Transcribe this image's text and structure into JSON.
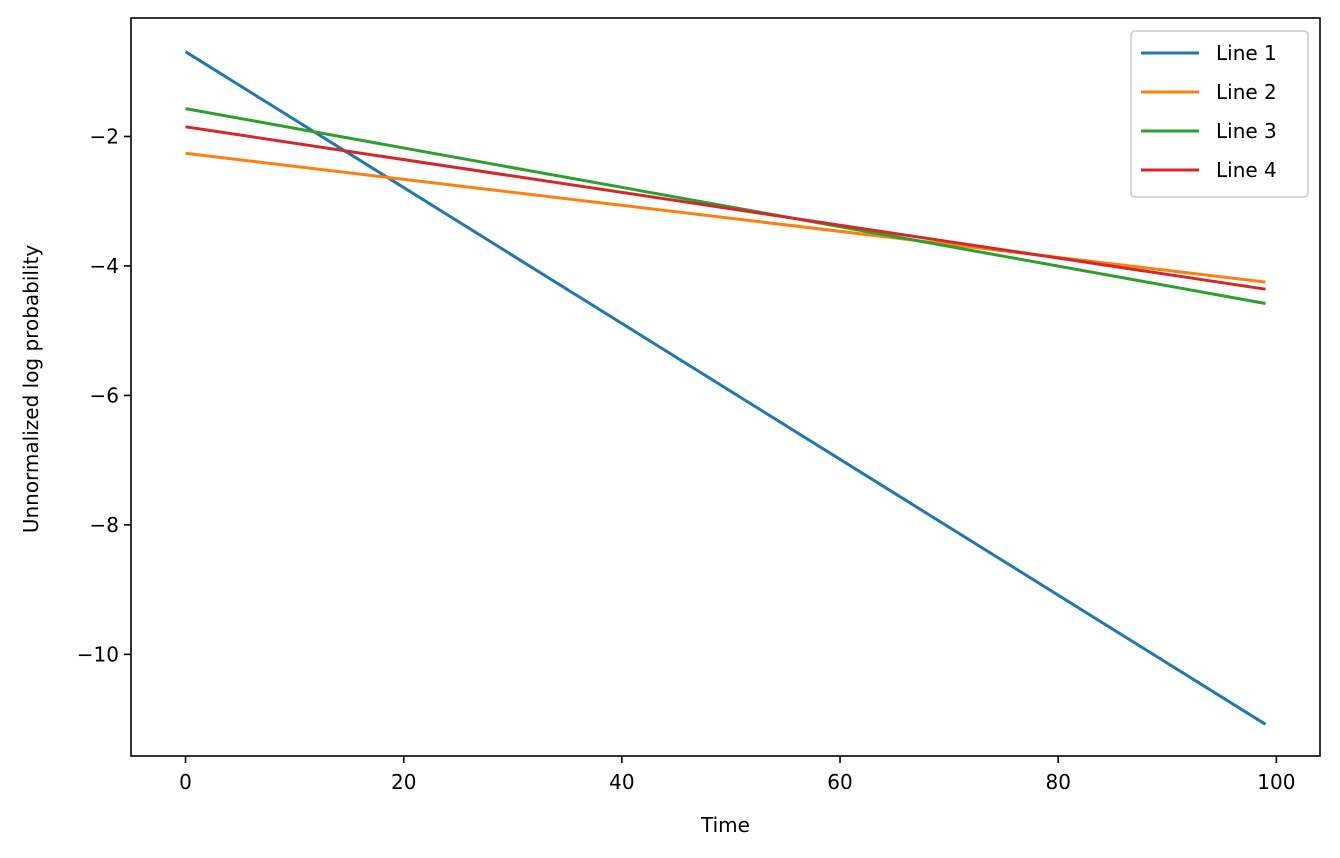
{
  "chart_data": {
    "type": "line",
    "title": "",
    "xlabel": "Time",
    "ylabel": "Unnormalized log probability",
    "xlim": [
      -5,
      104
    ],
    "ylim": [
      -11.57,
      -0.17
    ],
    "xticks": [
      0,
      20,
      40,
      60,
      80,
      100
    ],
    "yticks": [
      -10,
      -8,
      -6,
      -4,
      -2
    ],
    "xtick_labels": [
      "0",
      "20",
      "40",
      "60",
      "80",
      "100"
    ],
    "ytick_labels": [
      "−10",
      "−8",
      "−6",
      "−4",
      "−2"
    ],
    "grid": false,
    "legend_position": "top-right",
    "series": [
      {
        "name": "Line 1",
        "color": "#1f77b4",
        "x": [
          0,
          99
        ],
        "y": [
          -0.69,
          -11.08
        ]
      },
      {
        "name": "Line 2",
        "color": "#ff7f0e",
        "x": [
          0,
          99
        ],
        "y": [
          -2.26,
          -4.25
        ]
      },
      {
        "name": "Line 3",
        "color": "#2ca02c",
        "x": [
          0,
          99
        ],
        "y": [
          -1.57,
          -4.58
        ]
      },
      {
        "name": "Line 4",
        "color": "#d62728",
        "x": [
          0,
          99
        ],
        "y": [
          -1.85,
          -4.36
        ]
      }
    ]
  }
}
